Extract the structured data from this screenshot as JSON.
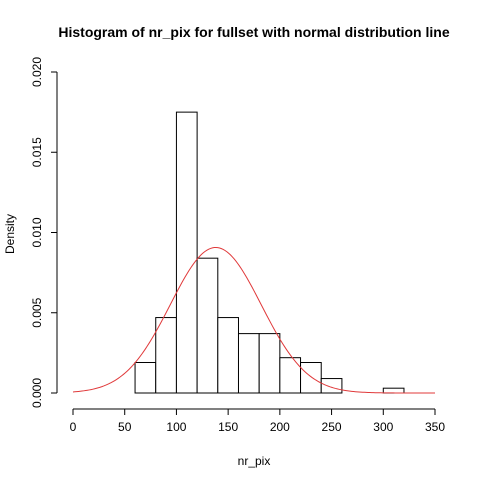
{
  "chart_data": {
    "type": "histogram",
    "title": "Histogram of nr_pix for fullset with normal distribution line",
    "xlabel": "nr_pix",
    "ylabel": "Density",
    "xlim": [
      0,
      350
    ],
    "ylim": [
      0,
      0.02
    ],
    "x_ticks": [
      "0",
      "50",
      "100",
      "150",
      "200",
      "250",
      "300",
      "350"
    ],
    "y_ticks": [
      "0.000",
      "0.005",
      "0.010",
      "0.015",
      "0.020"
    ],
    "bins": [
      {
        "x0": 60,
        "x1": 80,
        "density": 0.0019
      },
      {
        "x0": 80,
        "x1": 100,
        "density": 0.0047
      },
      {
        "x0": 100,
        "x1": 120,
        "density": 0.0175
      },
      {
        "x0": 120,
        "x1": 140,
        "density": 0.0084
      },
      {
        "x0": 140,
        "x1": 160,
        "density": 0.0047
      },
      {
        "x0": 160,
        "x1": 180,
        "density": 0.0037
      },
      {
        "x0": 180,
        "x1": 200,
        "density": 0.0037
      },
      {
        "x0": 200,
        "x1": 220,
        "density": 0.0022
      },
      {
        "x0": 220,
        "x1": 240,
        "density": 0.0019
      },
      {
        "x0": 240,
        "x1": 260,
        "density": 0.0009
      },
      {
        "x0": 260,
        "x1": 280,
        "density": 0.0
      },
      {
        "x0": 280,
        "x1": 300,
        "density": 0.0
      },
      {
        "x0": 300,
        "x1": 320,
        "density": 0.0003
      }
    ],
    "normal_curve": {
      "mean": 138,
      "sd": 44,
      "x_range": [
        0,
        350
      ],
      "color": "#e0393a"
    },
    "bar_fill": "#ffffff",
    "bar_stroke": "#000000",
    "grid": false
  }
}
